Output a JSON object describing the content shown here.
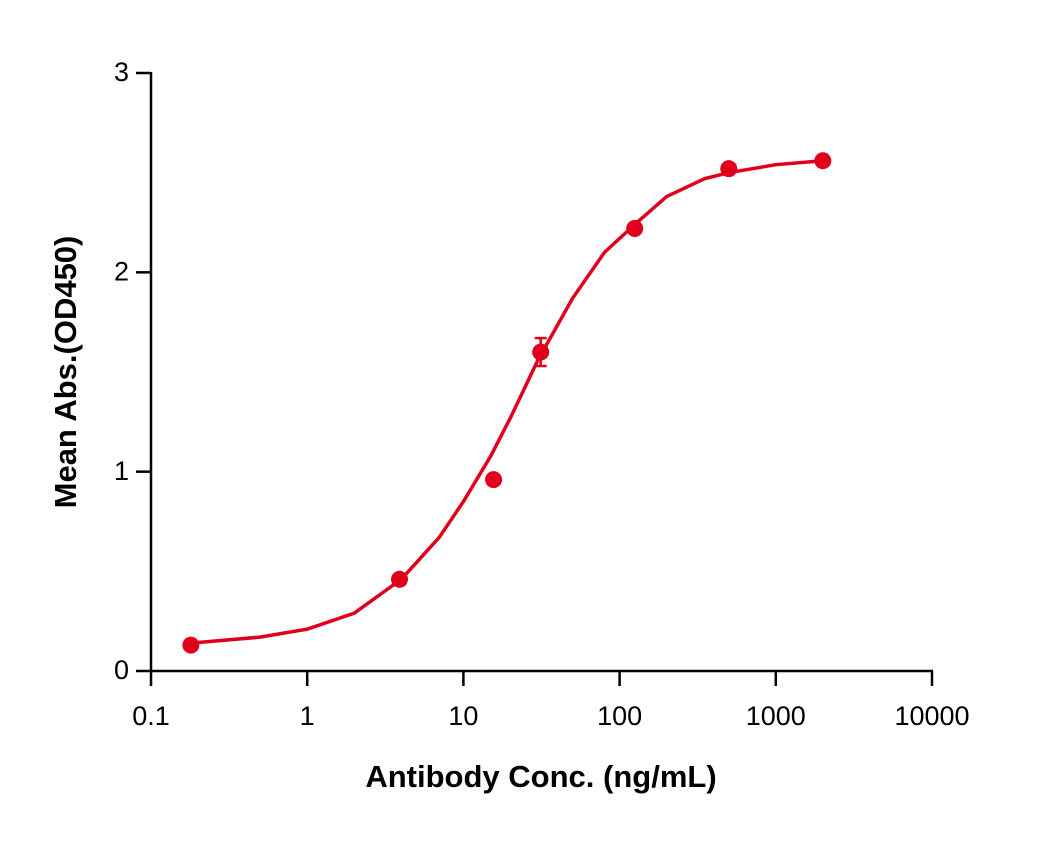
{
  "chart_data": {
    "type": "scatter",
    "xlabel": "Antibody Conc. (ng/mL)",
    "ylabel": "Mean Abs.(OD450)",
    "xscale": "log",
    "xlim": [
      0.1,
      10000
    ],
    "xticks": [
      0.1,
      1,
      10,
      100,
      1000,
      10000
    ],
    "ylim": [
      0,
      3
    ],
    "yticks": [
      0,
      1,
      2,
      3
    ],
    "grid": false,
    "series": [
      {
        "type": "scatter",
        "color": "#e0001b",
        "x": [
          0.18,
          3.9,
          15.6,
          31.25,
          125,
          500,
          2000
        ],
        "values": [
          0.13,
          0.46,
          0.96,
          1.6,
          2.22,
          2.52,
          2.56
        ],
        "errors": [
          null,
          null,
          null,
          0.07,
          null,
          null,
          null
        ]
      },
      {
        "type": "line",
        "color": "#e0001b",
        "x": [
          0.18,
          0.5,
          1,
          2,
          4,
          7,
          10,
          15,
          20,
          30,
          50,
          80,
          125,
          200,
          350,
          500,
          1000,
          2000
        ],
        "values": [
          0.14,
          0.17,
          0.21,
          0.29,
          0.46,
          0.67,
          0.85,
          1.08,
          1.27,
          1.56,
          1.87,
          2.1,
          2.24,
          2.38,
          2.47,
          2.5,
          2.54,
          2.56
        ]
      }
    ]
  }
}
